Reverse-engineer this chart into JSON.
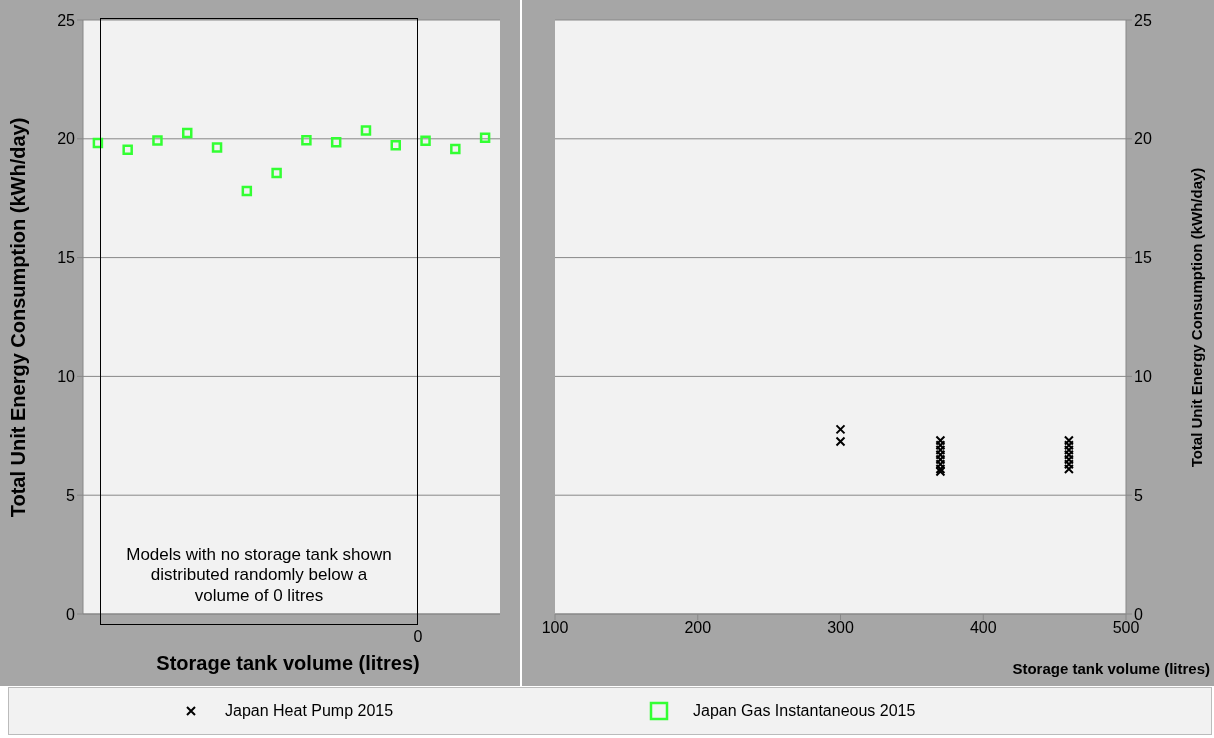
{
  "chart_data": [
    {
      "type": "scatter",
      "ylabel": "Total Unit Energy Consumption (kWh/day)",
      "xlabel": "Storage tank volume (litres)",
      "categories": [
        null,
        null,
        null,
        null,
        null,
        null,
        null,
        null,
        null,
        null,
        null,
        null,
        null,
        null
      ],
      "ylim": [
        0,
        25
      ],
      "yticks": [
        0,
        5,
        10,
        15,
        20,
        25
      ],
      "grid": "y",
      "legend": "bottom",
      "marker": "square",
      "annotations": [
        "Models with no storage tank shown distributed randomly below a volume of 0 litres",
        "0"
      ],
      "series": [
        {
          "name": "Japan Gas Instantaneous 2015",
          "color": "#33ff33",
          "values": [
            19.82,
            19.54,
            19.93,
            20.24,
            19.63,
            17.8,
            18.56,
            19.94,
            19.86,
            20.35,
            19.73,
            19.92,
            19.57,
            20.04
          ]
        }
      ]
    },
    {
      "type": "scatter",
      "ylabel": "Total Unit Energy Consumption (kWh/day)",
      "xlabel": "Storage tank volume (litres)",
      "xlim": [
        100,
        500
      ],
      "xticks": [
        100,
        200,
        300,
        400,
        500
      ],
      "ylim": [
        0,
        25
      ],
      "yticks": [
        0,
        5,
        10,
        15,
        20,
        25
      ],
      "grid": "y",
      "legend": "bottom",
      "marker": "cross",
      "series": [
        {
          "name": "Japan Heat Pump 2015",
          "color": "#000000",
          "x": [
            300,
            300,
            370,
            370,
            370,
            370,
            370,
            370,
            370,
            370,
            460,
            460,
            460,
            460,
            460,
            460,
            460
          ],
          "values": [
            7.77,
            7.26,
            7.3,
            7.1,
            6.9,
            6.7,
            6.5,
            6.3,
            6.1,
            6.0,
            7.3,
            7.1,
            6.9,
            6.7,
            6.5,
            6.3,
            6.1
          ]
        }
      ]
    }
  ]
}
